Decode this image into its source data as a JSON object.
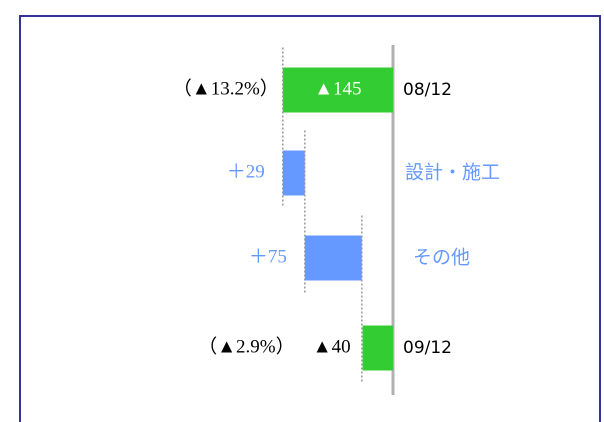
{
  "chart_data": {
    "type": "waterfall",
    "totals": [
      {
        "category": "08/12",
        "value": -145,
        "label": "▲145",
        "percent": -13.2,
        "percent_label": "（▲13.2%）"
      },
      {
        "category": "09/12",
        "value": -40,
        "label": "▲40",
        "percent": -2.9,
        "percent_label": "（▲2.9%）"
      }
    ],
    "changes": [
      {
        "category": "設計・施工",
        "value": 29,
        "label": "＋29"
      },
      {
        "category": "その他",
        "value": 75,
        "label": "＋75"
      }
    ],
    "total_color": "#33cc33",
    "change_color": "#6699ff"
  }
}
